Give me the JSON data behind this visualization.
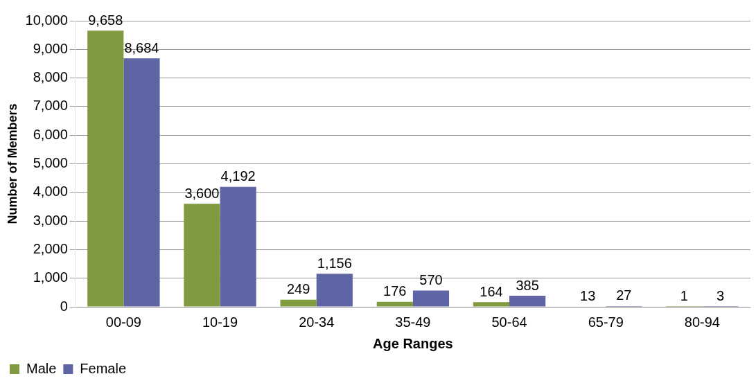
{
  "chart_data": {
    "type": "bar",
    "xlabel": "Age Ranges",
    "ylabel": "Number of Members",
    "categories": [
      "00-09",
      "10-19",
      "20-34",
      "35-49",
      "50-64",
      "65-79",
      "80-94"
    ],
    "series": [
      {
        "name": "Male",
        "color": "#7f9a3f",
        "values": [
          9658,
          3600,
          249,
          176,
          164,
          13,
          1
        ],
        "value_labels": [
          "9,658",
          "3,600",
          "249",
          "176",
          "164",
          "13",
          "1"
        ]
      },
      {
        "name": "Female",
        "color": "#5f64a5",
        "values": [
          8684,
          4192,
          1156,
          570,
          385,
          27,
          3
        ],
        "value_labels": [
          "8,684",
          "4,192",
          "1,156",
          "570",
          "385",
          "27",
          "3"
        ]
      }
    ],
    "ylim": [
      0,
      10000
    ],
    "yticks": [
      0,
      {
        "value": 1000,
        "label": "1,000"
      },
      {
        "value": 2000,
        "label": "2,000"
      },
      {
        "value": 3000,
        "label": "3,000"
      },
      {
        "value": 4000,
        "label": "4,000"
      },
      {
        "value": 5000,
        "label": "5,000"
      },
      {
        "value": 6000,
        "label": "6,000"
      },
      {
        "value": 7000,
        "label": "7,000"
      },
      {
        "value": 8000,
        "label": "8,000"
      },
      {
        "value": 9000,
        "label": "9,000"
      },
      {
        "value": 10000,
        "label": "10,000"
      }
    ],
    "grid": "y",
    "legend": "bottom left"
  }
}
